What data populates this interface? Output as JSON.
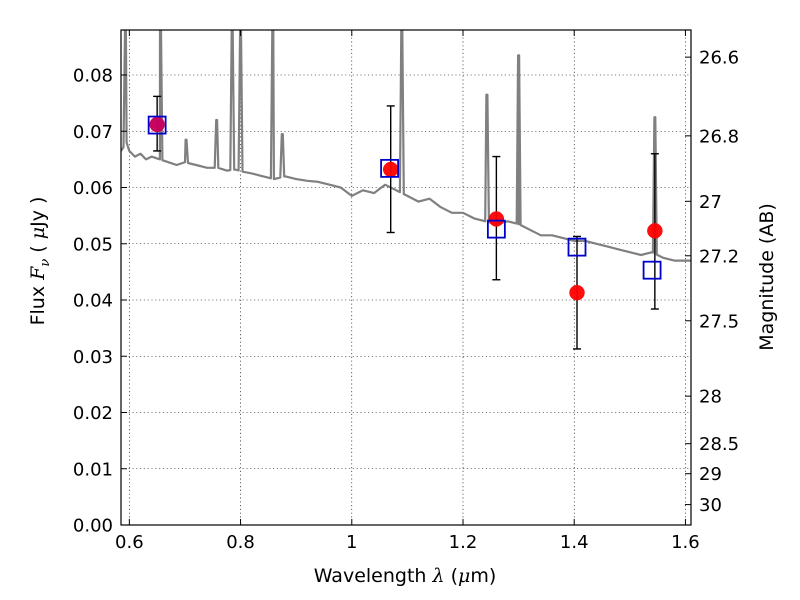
{
  "chart_data": {
    "type": "scatter",
    "xlabel": {
      "prefix": "Wavelength  ",
      "symbol": "λ",
      "units_open": " (",
      "units_symbol": "μ",
      "units_rest": "m)"
    },
    "ylabel": {
      "prefix": "Flux  ",
      "symbol": "F",
      "subscript": "ν",
      "units_open": "  (  ",
      "units_symbol": "μ",
      "units_rest": "Jy  )"
    },
    "y2label": "Magnitude (AB)",
    "xlim": [
      0.585,
      1.61
    ],
    "ylim": [
      0.0,
      0.088
    ],
    "xticks": [
      0.6,
      0.8,
      1.0,
      1.2,
      1.4,
      1.6
    ],
    "xtick_labels": [
      "0.6",
      "0.8",
      "1",
      "1.2",
      "1.4",
      "1.6"
    ],
    "yticks": [
      0.0,
      0.01,
      0.02,
      0.03,
      0.04,
      0.05,
      0.06,
      0.07,
      0.08
    ],
    "ytick_labels": [
      "0.00",
      "0.01",
      "0.02",
      "0.03",
      "0.04",
      "0.05",
      "0.06",
      "0.07",
      "0.08"
    ],
    "y2ticks": [
      26.6,
      26.8,
      27.0,
      27.2,
      27.5,
      28.0,
      28.5,
      29.0,
      30.0
    ],
    "y2tick_labels": [
      "26.6",
      "26.8",
      "27",
      "27.2",
      "27.5",
      "28",
      "28.5",
      "29",
      "30"
    ],
    "grid": true,
    "colors": {
      "model": "#808080",
      "observed": "#ff0000",
      "synthetic": "#0000cc",
      "errorbar": "#000000"
    },
    "model_spectrum": {
      "x": [
        0.585,
        0.595,
        0.6,
        0.61,
        0.62,
        0.63,
        0.64,
        0.655,
        0.67,
        0.685,
        0.7,
        0.72,
        0.74,
        0.76,
        0.775,
        0.79,
        0.805,
        0.82,
        0.84,
        0.86,
        0.88,
        0.9,
        0.92,
        0.94,
        0.96,
        0.98,
        1.0,
        1.02,
        1.04,
        1.06,
        1.08,
        1.1,
        1.12,
        1.14,
        1.16,
        1.18,
        1.2,
        1.22,
        1.24,
        1.26,
        1.28,
        1.3,
        1.32,
        1.34,
        1.36,
        1.38,
        1.4,
        1.42,
        1.44,
        1.46,
        1.48,
        1.5,
        1.52,
        1.54,
        1.56,
        1.58,
        1.61
      ],
      "y": [
        0.0665,
        0.068,
        0.0665,
        0.0655,
        0.066,
        0.065,
        0.0655,
        0.065,
        0.0645,
        0.064,
        0.0645,
        0.064,
        0.0635,
        0.0635,
        0.063,
        0.0632,
        0.0628,
        0.0625,
        0.062,
        0.0615,
        0.062,
        0.0615,
        0.0612,
        0.061,
        0.0605,
        0.06,
        0.0585,
        0.0595,
        0.059,
        0.0605,
        0.0595,
        0.0585,
        0.0575,
        0.058,
        0.0565,
        0.0555,
        0.0555,
        0.0545,
        0.054,
        0.0535,
        0.054,
        0.0535,
        0.0525,
        0.0515,
        0.0515,
        0.051,
        0.0505,
        0.0505,
        0.05,
        0.0495,
        0.049,
        0.0485,
        0.048,
        0.0485,
        0.0475,
        0.047,
        0.047
      ]
    },
    "model_lines": [
      {
        "x": 0.593,
        "y": 0.088
      },
      {
        "x": 0.656,
        "y": 0.088
      },
      {
        "x": 0.702,
        "y": 0.0685
      },
      {
        "x": 0.757,
        "y": 0.072
      },
      {
        "x": 0.785,
        "y": 0.088
      },
      {
        "x": 0.8,
        "y": 0.088
      },
      {
        "x": 0.858,
        "y": 0.088
      },
      {
        "x": 0.875,
        "y": 0.0695
      },
      {
        "x": 1.09,
        "y": 0.088
      },
      {
        "x": 1.243,
        "y": 0.0765
      },
      {
        "x": 1.3,
        "y": 0.0835
      },
      {
        "x": 1.545,
        "y": 0.0725
      }
    ],
    "series": [
      {
        "x": [
          0.65,
          1.07,
          1.26,
          1.405,
          1.545
        ],
        "y": [
          0.0712,
          0.0632,
          0.0544,
          0.0413,
          0.0523
        ],
        "yerr_low": [
          0.0665,
          0.052,
          0.0436,
          0.0313,
          0.0384
        ],
        "yerr_high": [
          0.0762,
          0.0745,
          0.0655,
          0.0513,
          0.066
        ]
      },
      {
        "x": [
          0.65,
          1.068,
          1.26,
          1.405,
          1.54
        ],
        "y": [
          0.0711,
          0.0634,
          0.0526,
          0.0494,
          0.0453
        ]
      }
    ]
  }
}
